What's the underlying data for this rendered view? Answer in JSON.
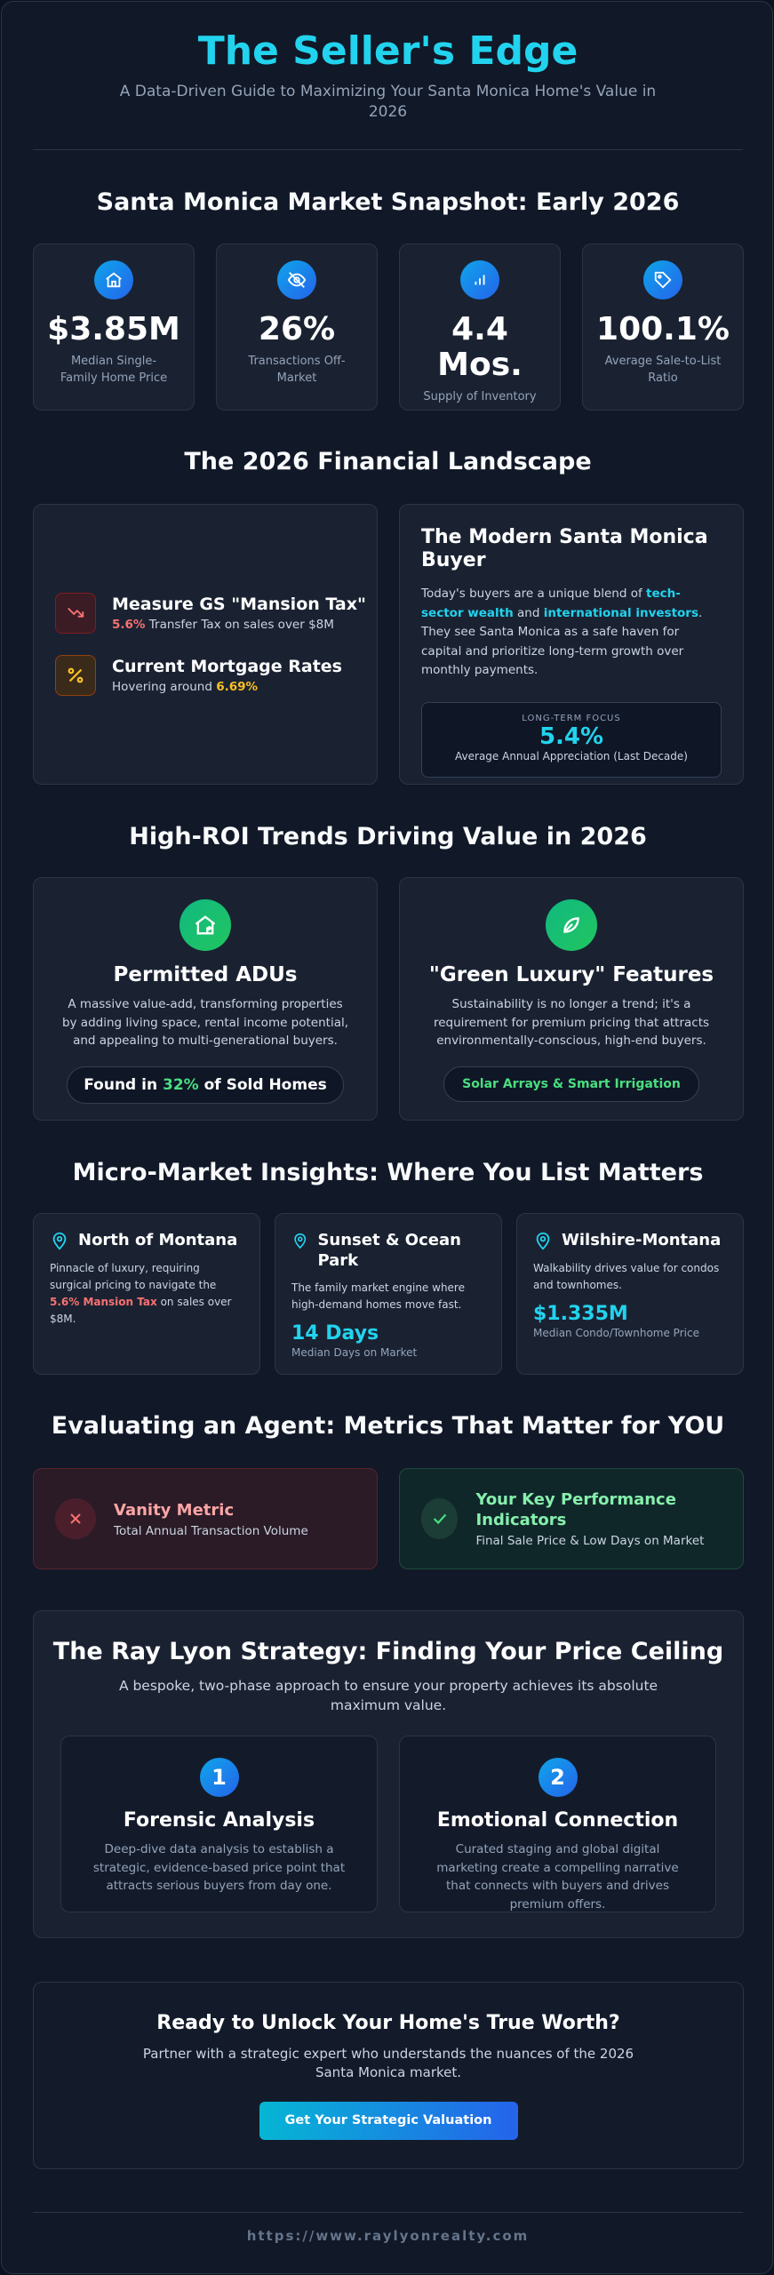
{
  "header": {
    "title": "The Seller's Edge",
    "subtitle": "A Data-Driven Guide to Maximizing Your Santa Monica Home's Value in 2026"
  },
  "snapshot": {
    "heading": "Santa Monica Market Snapshot: Early 2026",
    "cards": [
      {
        "value": "$3.85M",
        "label": "Median Single-Family Home Price"
      },
      {
        "value": "26%",
        "label": "Transactions Off-Market"
      },
      {
        "value": "4.4 Mos.",
        "label": "Supply of Inventory"
      },
      {
        "value": "100.1%",
        "label": "Average Sale-to-List Ratio"
      }
    ]
  },
  "financial": {
    "heading": "The 2026 Financial Landscape",
    "tax": {
      "title": "Measure GS \"Mansion Tax\"",
      "value": "5.6%",
      "text": "Transfer Tax on sales over $8M"
    },
    "mortgage": {
      "title": "Current Mortgage Rates",
      "text": "Hovering around",
      "value": "6.69%"
    },
    "buyer": {
      "title": "The Modern Santa Monica Buyer",
      "text": [
        "Today's buyers are a unique blend of",
        "tech-sector wealth",
        "and",
        "international investors",
        ". They see Santa Monica as a safe haven for capital and prioritize long-term growth over monthly payments."
      ],
      "focus_label": "LONG-TERM FOCUS",
      "focus_value": "5.4%",
      "focus_caption": "Average Annual Appreciation (Last Decade)"
    }
  },
  "trends": {
    "heading": "High-ROI Trends Driving Value in 2026",
    "adu": {
      "title": "Permitted ADUs",
      "text": "A massive value-add, transforming properties by adding living space, rental income potential, and appealing to multi-generational buyers.",
      "badge": [
        "Found in",
        "32%",
        "of Sold Homes"
      ]
    },
    "green": {
      "title": "\"Green Luxury\" Features",
      "text": "Sustainability is no longer a trend; it's a requirement for premium pricing that attracts environmentally-conscious, high-end buyers.",
      "badge": "Solar Arrays & Smart Irrigation"
    }
  },
  "micro": {
    "heading": "Micro-Market Insights: Where You List Matters",
    "north": {
      "title": "North of Montana",
      "text": [
        "Pinnacle of luxury, requiring surgical pricing to navigate the",
        "5.6% Mansion Tax",
        "on sales over $8M."
      ]
    },
    "sunset": {
      "title": "Sunset & Ocean Park",
      "text": "The family market engine where high-demand homes move fast.",
      "value": "14 Days",
      "caption": "Median Days on Market"
    },
    "wilshire": {
      "title": "Wilshire-Montana",
      "text": "Walkability drives value for condos and townhomes.",
      "value": "$1.335M",
      "caption": "Median Condo/Townhome Price"
    }
  },
  "agent": {
    "heading": "Evaluating an Agent: Metrics That Matter for YOU",
    "vanity": {
      "title": "Vanity Metric",
      "text": "Total Annual Transaction Volume"
    },
    "kpi": {
      "title": "Your Key Performance Indicators",
      "text": "Final Sale Price & Low Days on Market"
    }
  },
  "strategy": {
    "heading": "The Ray Lyon Strategy: Finding Your Price Ceiling",
    "subtitle": "A bespoke, two-phase approach to ensure your property achieves its absolute maximum value.",
    "steps": [
      {
        "number": "1",
        "title": "Forensic Analysis",
        "text": "Deep-dive data analysis to establish a strategic, evidence-based price point that attracts serious buyers from day one."
      },
      {
        "number": "2",
        "title": "Emotional Connection",
        "text": "Curated staging and global digital marketing create a compelling narrative that connects with buyers and drives premium offers."
      }
    ]
  },
  "cta": {
    "title": "Ready to Unlock Your Home's True Worth?",
    "text": "Partner with a strategic expert who understands the nuances of the 2026 Santa Monica market.",
    "button": "Get Your Strategic Valuation"
  },
  "footer": {
    "url": "https://www.raylyonrealty.com"
  }
}
